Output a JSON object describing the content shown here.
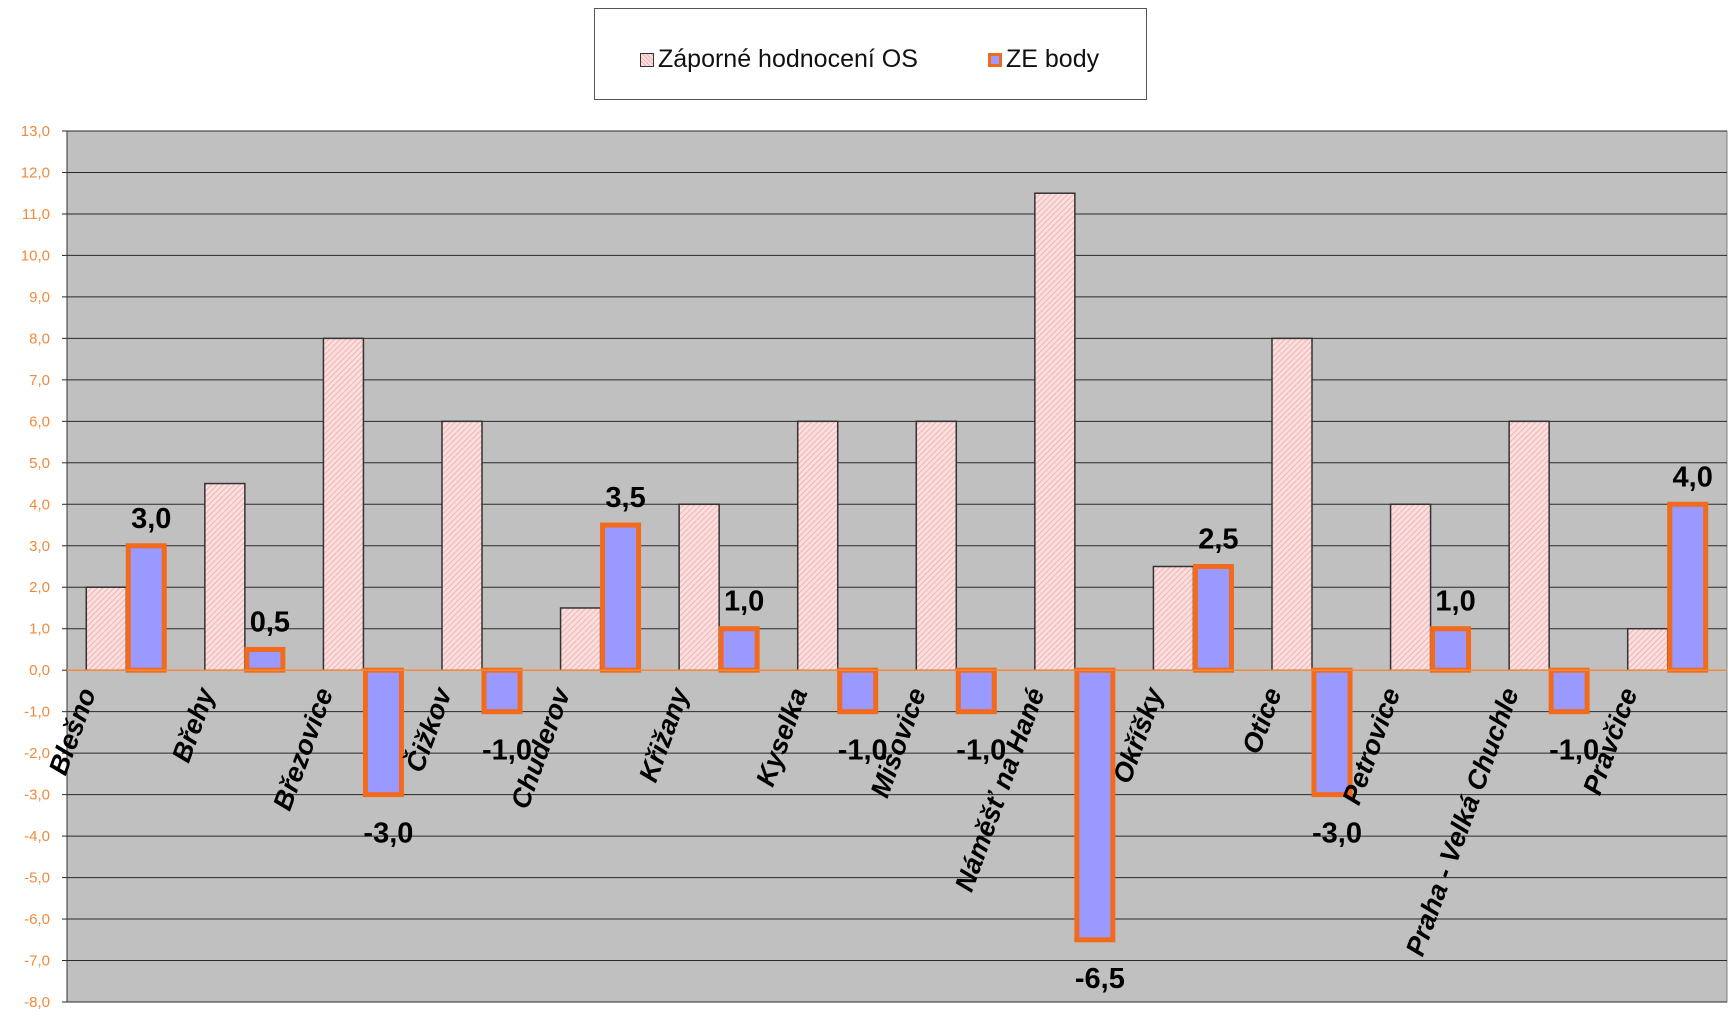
{
  "chart_data": {
    "type": "bar",
    "title": "",
    "xlabel": "",
    "ylabel": "",
    "ylim": [
      -8,
      13
    ],
    "yticks": [
      "13,0",
      "12,0",
      "11,0",
      "10,0",
      "9,0",
      "8,0",
      "7,0",
      "6,0",
      "5,0",
      "4,0",
      "3,0",
      "2,0",
      "1,0",
      "0,0",
      "-1,0",
      "-2,0",
      "-3,0",
      "-4,0",
      "-5,0",
      "-6,0",
      "-7,0",
      "-8,0"
    ],
    "grid": true,
    "legend_position": "top-center",
    "categories": [
      "Blešno",
      "Břehy",
      "Březovice",
      "Čižkov",
      "Chuderov",
      "Křižany",
      "Kyselka",
      "Mišovice",
      "Náměšť na Hané",
      "Okříšky",
      "Otice",
      "Petrovice",
      "Praha - Velká Chuchle",
      "Pravčice"
    ],
    "series": [
      {
        "name": "Záporné hodnocení OS",
        "values": [
          2.0,
          4.5,
          8.0,
          6.0,
          1.5,
          4.0,
          6.0,
          6.0,
          11.5,
          2.5,
          8.0,
          4.0,
          6.0,
          1.0
        ]
      },
      {
        "name": "ZE body",
        "values": [
          3.0,
          0.5,
          -3.0,
          -1.0,
          3.5,
          1.0,
          -1.0,
          -1.0,
          -6.5,
          2.5,
          -3.0,
          1.0,
          -1.0,
          4.0
        ],
        "data_labels": [
          "3,0",
          "0,5",
          "-3,0",
          "-1,0",
          "3,5",
          "1,0",
          "-1,0",
          "-1,0",
          "-6,5",
          "2,5",
          "-3,0",
          "1,0",
          "-1,0",
          "4,0"
        ]
      }
    ],
    "colors": {
      "plot_background": "#c0c0c0",
      "os_fill": "#f8cccc",
      "os_hatch": "#f0a8a8",
      "ze_fill": "#9999ff",
      "ze_border": "#f26b1d",
      "tick_label": "#f08a3c",
      "zero_line": "#f08a3c"
    }
  }
}
